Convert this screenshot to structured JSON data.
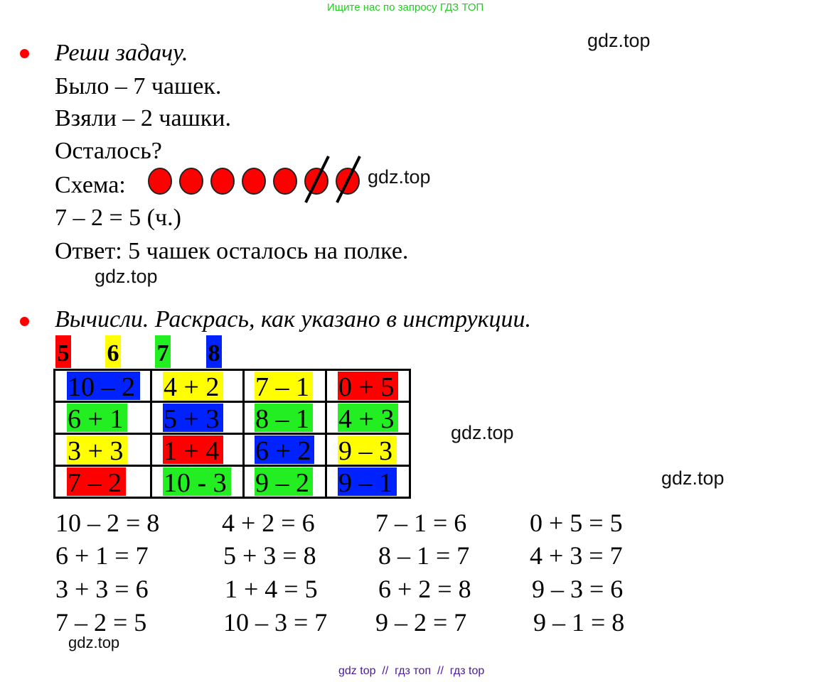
{
  "header_banner": "Ищите нас по запросу ГДЗ ТОП",
  "watermarks": [
    "gdz.top",
    "gdz.top",
    "gdz.top",
    "gdz.top",
    "gdz.top",
    "gdz.top"
  ],
  "task1": {
    "title": "Реши задачу.",
    "lines": [
      "Было – 7 чашек.",
      "Взяли – 2 чашки.",
      "Осталось?"
    ],
    "scheme_label": "Схема:",
    "scheme": {
      "total": 7,
      "crossed_out": 2,
      "circle_color": "#ff0000"
    },
    "solution": "7 – 2 = 5 (ч.)",
    "answer": "Ответ: 5 чашек осталось на полке."
  },
  "task2": {
    "title": "Вычисли. Раскрась, как указано в инструкции.",
    "legend": [
      {
        "value": "5",
        "color": "#ff0000"
      },
      {
        "value": "6",
        "color": "#ffff00"
      },
      {
        "value": "7",
        "color": "#22ee22"
      },
      {
        "value": "8",
        "color": "#0022ff"
      }
    ],
    "grid": [
      [
        {
          "expr": "10 – 2",
          "color": "#0022ff"
        },
        {
          "expr": "4 + 2",
          "color": "#ffff00"
        },
        {
          "expr": "7 – 1",
          "color": "#ffff00"
        },
        {
          "expr": "0 + 5",
          "color": "#ff0000"
        }
      ],
      [
        {
          "expr": "6 + 1",
          "color": "#22ee22"
        },
        {
          "expr": "5 + 3",
          "color": "#0022ff"
        },
        {
          "expr": "8 – 1",
          "color": "#22ee22"
        },
        {
          "expr": "4 + 3",
          "color": "#22ee22"
        }
      ],
      [
        {
          "expr": "3 + 3",
          "color": "#ffff00"
        },
        {
          "expr": "1 + 4",
          "color": "#ff0000"
        },
        {
          "expr": "6 + 2",
          "color": "#0022ff"
        },
        {
          "expr": "9 – 3",
          "color": "#ffff00"
        }
      ],
      [
        {
          "expr": "7 – 2",
          "color": "#ff0000"
        },
        {
          "expr": "10 - 3",
          "color": "#22ee22"
        },
        {
          "expr": "9 – 2",
          "color": "#22ee22"
        },
        {
          "expr": "9 – 1",
          "color": "#0022ff"
        }
      ]
    ],
    "equations": [
      [
        "10 – 2 = 8",
        "4 + 2 = 6",
        "7 – 1 = 6",
        "0 + 5 = 5"
      ],
      [
        "6 + 1 = 7",
        "5 + 3 = 8",
        "8 – 1 = 7",
        "4 + 3 = 7"
      ],
      [
        "3 + 3 = 6",
        "1 + 4 = 5",
        "6 + 2 = 8",
        "9 – 3 = 6"
      ],
      [
        "7 – 2 = 5",
        "10 – 3 = 7",
        "9 – 2 = 7",
        "9 – 1 = 8"
      ]
    ]
  },
  "footer": "gdz top  //  гдз топ  //  гдз top"
}
